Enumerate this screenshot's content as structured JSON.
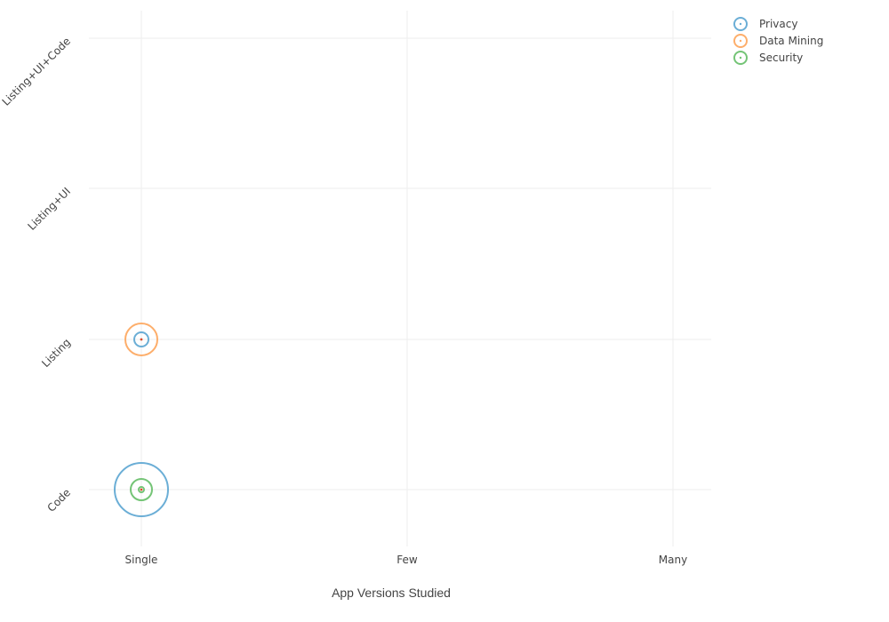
{
  "chart_data": {
    "type": "scatter",
    "title": "",
    "xlabel": "App Versions Studied",
    "ylabel": "",
    "x_categories": [
      "Single",
      "Few",
      "Many"
    ],
    "y_categories": [
      "Code",
      "Listing",
      "Listing+UI",
      "Listing+UI+Code"
    ],
    "grid": true,
    "legend_position": "top-right",
    "series": [
      {
        "name": "Privacy",
        "color": "#6baed6",
        "points": [
          {
            "x": "Single",
            "y": "Code",
            "size": 30
          },
          {
            "x": "Single",
            "y": "Listing",
            "size": 8
          }
        ]
      },
      {
        "name": "Data Mining",
        "color": "#fdae6b",
        "points": [
          {
            "x": "Single",
            "y": "Listing",
            "size": 18
          }
        ]
      },
      {
        "name": "Security",
        "color": "#74c476",
        "points": [
          {
            "x": "Single",
            "y": "Code",
            "size": 12
          },
          {
            "x": "Single",
            "y": "Code",
            "size": 3
          }
        ]
      }
    ],
    "center_dot_color": "#d94b2b"
  }
}
